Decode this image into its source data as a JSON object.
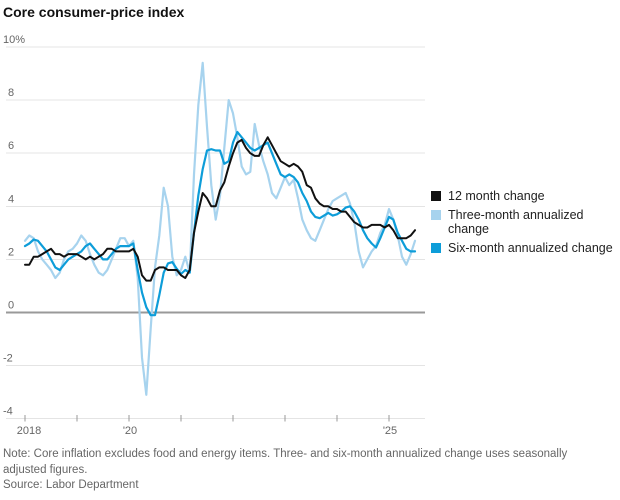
{
  "title": "Core consumer-price index",
  "legend": {
    "items": [
      {
        "label": "12 month change"
      },
      {
        "label": "Three-month annualized change"
      },
      {
        "label": "Six-month annualized change"
      }
    ]
  },
  "notes": {
    "note": "Note: Core inflation excludes food and energy items. Three- and six-month annualized change uses seasonally adjusted figures.",
    "source": "Source: Labor Department"
  },
  "colors": {
    "black_series": "#111111",
    "light_blue_series": "#a7d3ee",
    "blue_series": "#0d9dd9",
    "gridline": "#e4e4e4",
    "zero_line": "#999999",
    "axis_text": "#666666",
    "tick": "#999999"
  },
  "chart_data": {
    "type": "line",
    "title": "Core consumer-price index",
    "xlabel": "",
    "ylabel": "",
    "x_start": "2018-01",
    "x_end": "2025-07",
    "x_frequency": "monthly",
    "x_tick_years": [
      2018,
      2019,
      2020,
      2021,
      2022,
      2023,
      2024,
      2025
    ],
    "x_tick_labels": [
      "2018",
      "",
      "'20",
      "",
      "",
      "",
      "",
      "'25"
    ],
    "y_tick_values": [
      10,
      8,
      6,
      4,
      2,
      0,
      -2,
      -4
    ],
    "y_tick_labels": [
      "10%",
      "8",
      "6",
      "4",
      "2",
      "0",
      "-2",
      "-4"
    ],
    "ylim": [
      -4.6,
      10.4
    ],
    "grid": "horizontal",
    "legend_position": "right",
    "series": [
      {
        "name": "12 month change",
        "color": "#111111",
        "values": [
          1.8,
          1.8,
          2.1,
          2.1,
          2.2,
          2.3,
          2.4,
          2.2,
          2.2,
          2.1,
          2.2,
          2.2,
          2.2,
          2.1,
          2.0,
          2.1,
          2.0,
          2.1,
          2.2,
          2.4,
          2.4,
          2.3,
          2.3,
          2.3,
          2.3,
          2.4,
          2.1,
          1.4,
          1.2,
          1.2,
          1.6,
          1.7,
          1.7,
          1.6,
          1.6,
          1.6,
          1.4,
          1.3,
          1.6,
          3.0,
          3.8,
          4.5,
          4.3,
          4.0,
          4.0,
          4.6,
          4.9,
          5.5,
          6.0,
          6.4,
          6.5,
          6.2,
          6.0,
          5.9,
          5.9,
          6.3,
          6.6,
          6.3,
          6.0,
          5.7,
          5.6,
          5.5,
          5.6,
          5.5,
          5.3,
          4.8,
          4.7,
          4.3,
          4.1,
          4.0,
          4.0,
          3.9,
          3.9,
          3.8,
          3.8,
          3.6,
          3.4,
          3.3,
          3.2,
          3.2,
          3.3,
          3.3,
          3.3,
          3.2,
          3.3,
          3.1,
          2.8,
          2.8,
          2.8,
          2.9,
          3.1
        ]
      },
      {
        "name": "Three-month annualized change",
        "color": "#a7d3ee",
        "values": [
          2.7,
          2.9,
          2.8,
          2.3,
          2.0,
          1.8,
          1.6,
          1.3,
          1.5,
          2.0,
          2.3,
          2.4,
          2.6,
          2.9,
          2.7,
          2.2,
          1.8,
          1.5,
          1.4,
          1.6,
          2.0,
          2.4,
          2.8,
          2.8,
          2.5,
          2.7,
          1.3,
          -1.7,
          -3.1,
          -0.6,
          1.7,
          2.9,
          4.7,
          4.0,
          2.1,
          1.4,
          1.6,
          2.1,
          1.5,
          5.2,
          7.8,
          9.4,
          7.0,
          4.8,
          3.5,
          4.4,
          6.2,
          8.0,
          7.5,
          6.6,
          5.5,
          5.2,
          5.3,
          7.1,
          6.3,
          5.7,
          5.2,
          4.5,
          4.3,
          4.7,
          5.1,
          4.8,
          5.0,
          4.3,
          3.5,
          3.1,
          2.8,
          2.7,
          3.1,
          3.5,
          3.9,
          4.2,
          4.3,
          4.4,
          4.5,
          4.1,
          3.4,
          2.3,
          1.7,
          2.0,
          2.3,
          2.5,
          3.0,
          3.3,
          3.9,
          3.5,
          2.9,
          2.1,
          1.8,
          2.2,
          2.7
        ]
      },
      {
        "name": "Six-month annualized change",
        "color": "#0d9dd9",
        "values": [
          2.5,
          2.6,
          2.75,
          2.7,
          2.5,
          2.3,
          2.0,
          1.7,
          1.6,
          1.8,
          2.0,
          2.1,
          2.2,
          2.3,
          2.5,
          2.6,
          2.4,
          2.2,
          2.0,
          2.0,
          2.2,
          2.4,
          2.5,
          2.5,
          2.5,
          2.6,
          1.6,
          0.75,
          0.2,
          -0.1,
          -0.1,
          0.65,
          1.5,
          1.85,
          1.9,
          1.65,
          1.45,
          1.6,
          1.5,
          3.0,
          4.4,
          5.4,
          6.1,
          6.15,
          6.1,
          6.1,
          5.6,
          5.7,
          6.4,
          6.8,
          6.6,
          6.4,
          6.2,
          6.1,
          6.2,
          6.3,
          6.4,
          6.0,
          5.6,
          5.2,
          5.1,
          5.2,
          5.1,
          4.9,
          4.5,
          4.2,
          3.8,
          3.6,
          3.55,
          3.65,
          3.75,
          3.65,
          3.7,
          3.8,
          3.95,
          4.0,
          3.8,
          3.5,
          3.1,
          2.8,
          2.6,
          2.45,
          2.8,
          3.2,
          3.6,
          3.5,
          3.0,
          2.7,
          2.4,
          2.3,
          2.3
        ]
      }
    ]
  }
}
